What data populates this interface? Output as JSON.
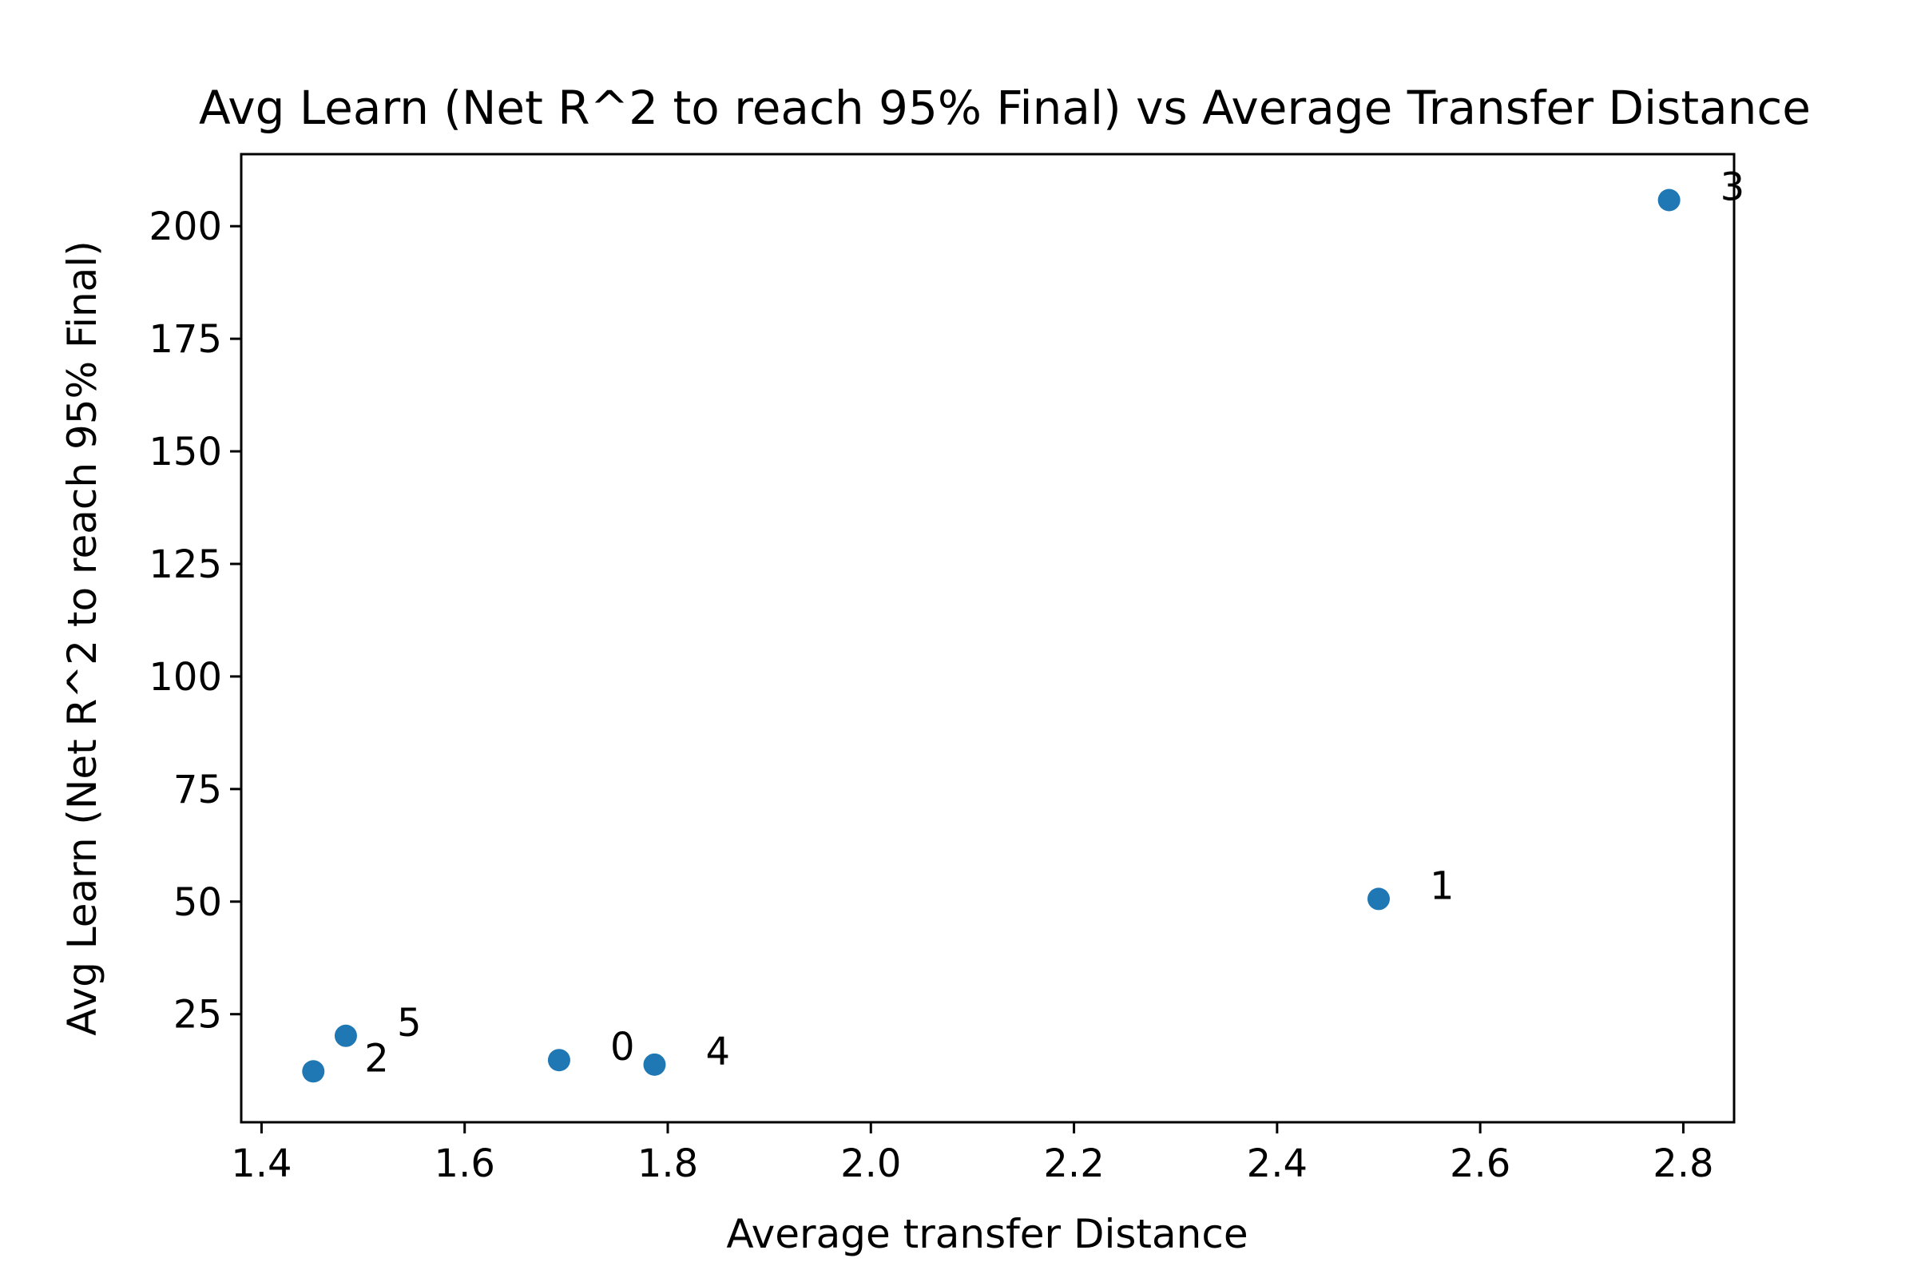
{
  "chart_data": {
    "type": "scatter",
    "title": "Avg Learn (Net R^2 to reach 95% Final) vs Average Transfer Distance",
    "xlabel": "Average transfer Distance",
    "ylabel": "Avg Learn (Net R^2 to reach 95% Final)",
    "xlim": [
      1.38,
      2.85
    ],
    "ylim": [
      1,
      216
    ],
    "xticks": [
      1.4,
      1.6,
      1.8,
      2.0,
      2.2,
      2.4,
      2.6,
      2.8
    ],
    "xtick_labels": [
      "1.4",
      "1.6",
      "1.8",
      "2.0",
      "2.2",
      "2.4",
      "2.6",
      "2.8"
    ],
    "yticks": [
      25,
      50,
      75,
      100,
      125,
      150,
      175,
      200
    ],
    "ytick_labels": [
      "25",
      "50",
      "75",
      "100",
      "125",
      "150",
      "175",
      "200"
    ],
    "grid": false,
    "marker_color": "#1f77b4",
    "points": [
      {
        "label": "0",
        "x": 1.693,
        "y": 14.8
      },
      {
        "label": "1",
        "x": 2.5,
        "y": 50.6
      },
      {
        "label": "2",
        "x": 1.451,
        "y": 12.3
      },
      {
        "label": "3",
        "x": 2.786,
        "y": 205.8
      },
      {
        "label": "4",
        "x": 1.787,
        "y": 13.8
      },
      {
        "label": "5",
        "x": 1.483,
        "y": 20.2
      }
    ]
  }
}
